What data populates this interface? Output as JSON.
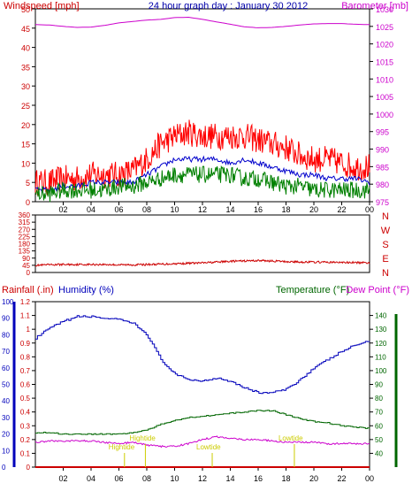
{
  "colors": {
    "wind_gust": "#ff0000",
    "wind_avg": "#008000",
    "wind_mid": "#0000cc",
    "barometer": "#cc00cc",
    "direction": "#cc0000",
    "humidity": "#0000bb",
    "temperature": "#006600",
    "dewpoint": "#cc00cc",
    "rainfall": "#cc0000",
    "tide": "#cccc00"
  },
  "chart_data": [
    {
      "type": "line",
      "title": "24 hour graph day : January 30 2012",
      "left_label": "Windspeed [mph]",
      "right_label": "Barometer [mb]",
      "x_ticks": [
        "02",
        "04",
        "06",
        "08",
        "10",
        "12",
        "14",
        "16",
        "18",
        "20",
        "22",
        "00"
      ],
      "left_ticks": [
        "0",
        "5",
        "10",
        "15",
        "20",
        "25",
        "30",
        "35",
        "40",
        "45",
        "50"
      ],
      "right_ticks": [
        "975",
        "980",
        "985",
        "990",
        "995",
        "1000",
        "1005",
        "1010",
        "1015",
        "1020",
        "1025",
        "1030"
      ],
      "left_ylim": [
        0,
        50
      ],
      "right_ylim": [
        975,
        1030
      ],
      "hours": [
        0,
        1,
        2,
        3,
        4,
        5,
        6,
        7,
        8,
        9,
        10,
        11,
        12,
        13,
        14,
        15,
        16,
        17,
        18,
        19,
        20,
        21,
        22,
        23,
        24
      ],
      "series": [
        {
          "values": [
            5,
            5,
            6,
            6,
            7,
            7,
            7,
            8,
            11,
            15,
            17,
            18,
            17,
            17,
            17,
            17,
            16,
            15,
            14,
            12,
            11,
            11,
            10,
            9,
            9
          ]
        },
        {
          "values": [
            3,
            3,
            4,
            4,
            5,
            5,
            5,
            5,
            7,
            9,
            11,
            11,
            11,
            11,
            10,
            11,
            10,
            9,
            8,
            7,
            7,
            6,
            6,
            6,
            5
          ]
        },
        {
          "values": [
            2,
            2,
            3,
            3,
            3,
            3,
            4,
            4,
            5,
            6,
            7,
            7,
            7,
            7,
            7,
            6,
            6,
            5,
            4,
            4,
            3,
            3,
            3,
            3,
            3
          ]
        },
        {
          "values": [
            1025.5,
            1025.4,
            1025.0,
            1024.7,
            1024.8,
            1025.3,
            1026.0,
            1026.4,
            1026.8,
            1027.0,
            1027.5,
            1027.6,
            1027.0,
            1026.3,
            1025.6,
            1024.9,
            1024.6,
            1024.7,
            1025.0,
            1025.4,
            1025.7,
            1025.8,
            1025.8,
            1025.6,
            1025.5
          ]
        }
      ]
    },
    {
      "type": "line",
      "y_ticks": [
        "0",
        "45",
        "90",
        "135",
        "180",
        "225",
        "270",
        "315",
        "360"
      ],
      "direction_labels": [
        "N",
        "W",
        "S",
        "E",
        "N"
      ],
      "ylim": [
        0,
        360
      ],
      "hours": [
        0,
        1,
        2,
        3,
        4,
        5,
        6,
        7,
        8,
        9,
        10,
        11,
        12,
        13,
        14,
        15,
        16,
        17,
        18,
        19,
        20,
        21,
        22,
        23,
        24
      ],
      "series": [
        {
          "values": [
            45,
            48,
            50,
            50,
            50,
            50,
            48,
            48,
            50,
            52,
            55,
            58,
            60,
            65,
            70,
            72,
            75,
            72,
            68,
            66,
            65,
            64,
            63,
            62,
            60
          ]
        }
      ]
    },
    {
      "type": "line",
      "left_label": "Rainfall (.in)",
      "humidity_label": "Humidity (%)",
      "right_label": "Temperature (°F)",
      "dewpoint_label": "Dew Point (°F)",
      "rain_ticks": [
        "0",
        "0.1",
        "0.2",
        "0.3",
        "0.4",
        "0.5",
        "0.6",
        "0.7",
        "0.8",
        "0.9",
        "1",
        "1.1",
        "1.2"
      ],
      "humidity_ticks": [
        "0",
        "10",
        "20",
        "30",
        "40",
        "50",
        "60",
        "70",
        "80",
        "90",
        "100"
      ],
      "temp_ticks": [
        "40",
        "50",
        "60",
        "70",
        "80",
        "90",
        "100",
        "110",
        "120",
        "130",
        "140"
      ],
      "humidity_ylim": [
        0,
        100
      ],
      "temp_ylim": [
        30,
        150
      ],
      "hours": [
        0,
        1,
        2,
        3,
        4,
        5,
        6,
        7,
        8,
        9,
        10,
        11,
        12,
        13,
        14,
        15,
        16,
        17,
        18,
        19,
        20,
        21,
        22,
        23,
        24
      ],
      "series": [
        {
          "values": [
            78,
            84,
            88,
            91,
            91,
            90,
            89,
            87,
            80,
            65,
            56,
            53,
            52,
            54,
            52,
            48,
            45,
            45,
            47,
            53,
            60,
            65,
            70,
            74,
            76
          ]
        },
        {
          "values": [
            55,
            55,
            54,
            54,
            54,
            54,
            54,
            55,
            57,
            61,
            64,
            66,
            67,
            68,
            69,
            70,
            71,
            71,
            68,
            65,
            63,
            62,
            60,
            59,
            58
          ]
        },
        {
          "values": [
            48,
            49,
            49,
            49,
            49,
            48,
            47,
            48,
            46,
            45,
            45,
            47,
            50,
            52,
            51,
            50,
            50,
            49,
            48,
            48,
            48,
            47,
            47,
            47,
            47
          ]
        },
        {
          "values": [
            0,
            0,
            0,
            0,
            0,
            0,
            0,
            0,
            0,
            0,
            0,
            0,
            0,
            0,
            0,
            0,
            0,
            0,
            0,
            0,
            0,
            0,
            0,
            0,
            0
          ]
        }
      ],
      "annotations": [
        {
          "text": "Hightide",
          "hour": 6.4
        },
        {
          "text": "Hightide",
          "hour": 7.9
        },
        {
          "text": "Lowtide",
          "hour": 12.7
        },
        {
          "text": "Lowtide",
          "hour": 18.6
        }
      ]
    }
  ]
}
